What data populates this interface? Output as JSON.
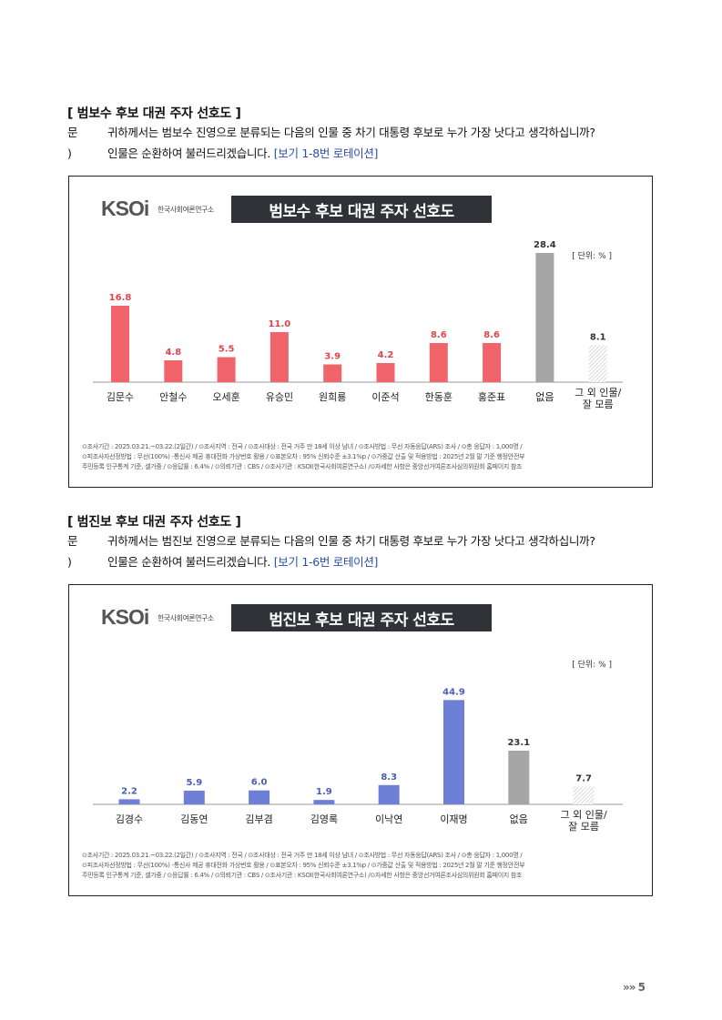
{
  "section1": {
    "title": "[ 범보수 후보 대권 주자 선호도 ]",
    "q_label": "문 )",
    "q_line1": "귀하께서는 범보수 진영으로 분류되는 다음의 인물 중 차기 대통령 후보로 누가 가장 낫다고 생각하십니까?",
    "q_line2": "인물은 순환하여 불러드리겠습니다. ",
    "q_note": "[보기 1-8번 로테이션]",
    "logo_text": "KSOi",
    "logo_org": "한국사회여론연구소",
    "banner": "범보수 후보 대권 주자 선호도",
    "unit": "[ 단위: % ]",
    "footnote": [
      "⊙조사기간 : 2025.03.21.~03.22.(2일간)  / ⊙조사지역 : 전국 / ⊙조사대상 : 전국 거주 만 18세 이상 남녀 / ⊙조사방법 : 무선 자동응답(ARS) 조사 / ⊙총 응답자 : 1,000명 /",
      "⊙피조사자선정방법 : 무선(100%) -통신사 제공 휴대전화 가상번호 활용 / ⊙표본오차 : 95% 신뢰수준 ±3.1%p / ⊙가중값 산출 및 적용방법 : 2025년 2월 말 기준 행정안전부",
      "주민등록 인구통계 기준, 셀가중 / ⊙응답률 : 6.4% / ⊙의뢰기관 : CBS / ⊙조사기관 : KSOI(한국사회여론연구소) /⊙자세한 사항은 중앙선거여론조사심의위원회 홈페이지 참조"
    ]
  },
  "section2": {
    "title": "[ 범진보 후보 대권 주자 선호도 ]",
    "q_label": "문 )",
    "q_line1": "귀하께서는 범진보 진영으로 분류되는 다음의 인물 중 차기 대통령 후보로 누가 가장 낫다고 생각하십니까?",
    "q_line2": "인물은 순환하여 불러드리겠습니다. ",
    "q_note": "[보기 1-6번 로테이션]",
    "logo_text": "KSOi",
    "logo_org": "한국사회여론연구소",
    "banner": "범진보 후보 대권 주자 선호도",
    "unit": "[ 단위: % ]",
    "footnote": [
      "⊙조사기간 : 2025.03.21.~03.22.(2일간)  / ⊙조사지역 : 전국 / ⊙조사대상 : 전국 거주 만 18세 이상 남녀 / ⊙조사방법 : 무선 자동응답(ARS) 조사 / ⊙총 응답자 : 1,000명 /",
      "⊙피조사자선정방법 : 무선(100%) -통신사 제공 휴대전화 가상번호 활용 / ⊙표본오차 : 95% 신뢰수준 ±3.1%p / ⊙가중값 산출 및 적용방법 : 2025년 2월 말 기준 행정안전부",
      "주민등록 인구통계 기준, 셀가중 / ⊙응답률 : 6.4% / ⊙의뢰기관 : CBS / ⊙조사기관 : KSOI(한국사회여론연구소) /⊙자세한 사항은 중앙선거여론조사심의위원회 홈페이지 참조"
    ]
  },
  "chart_data": [
    {
      "type": "bar",
      "title": "범보수 후보 대권 주자 선호도",
      "unit": "[ 단위: % ]",
      "categories": [
        "김문수",
        "안철수",
        "오세훈",
        "유승민",
        "원희룡",
        "이준석",
        "한동훈",
        "홍준표",
        "없음",
        "그 외 인물/\n잘 모름"
      ],
      "values": [
        16.8,
        4.8,
        5.5,
        11.0,
        3.9,
        4.2,
        8.6,
        8.6,
        28.4,
        8.1
      ],
      "value_labels": [
        "16.8",
        "4.8",
        "5.5",
        "11.0",
        "3.9",
        "4.2",
        "8.6",
        "8.6",
        "28.4",
        "8.1"
      ],
      "bar_styles": [
        "candidate",
        "candidate",
        "candidate",
        "candidate",
        "candidate",
        "candidate",
        "candidate",
        "candidate",
        "none",
        "hatched"
      ],
      "colors": {
        "candidate": "#f2646c",
        "candidate_label": "#e0454f",
        "none": "#a6a6a6",
        "hatched": "#cfcfcf",
        "neutral_label": "#333333"
      },
      "ylim": [
        0,
        30
      ],
      "grid": false,
      "legend": "none"
    },
    {
      "type": "bar",
      "title": "범진보 후보 대권 주자 선호도",
      "unit": "[ 단위: % ]",
      "categories": [
        "김경수",
        "김동연",
        "김부겸",
        "김영록",
        "이낙연",
        "이재명",
        "없음",
        "그 외 인물/\n잘 모름"
      ],
      "values": [
        2.2,
        5.9,
        6.0,
        1.9,
        8.3,
        44.9,
        23.1,
        7.7
      ],
      "value_labels": [
        "2.2",
        "5.9",
        "6.0",
        "1.9",
        "8.3",
        "44.9",
        "23.1",
        "7.7"
      ],
      "bar_styles": [
        "candidate",
        "candidate",
        "candidate",
        "candidate",
        "candidate",
        "candidate",
        "none",
        "hatched"
      ],
      "colors": {
        "candidate": "#6e7fd6",
        "candidate_label": "#4a5bb8",
        "none": "#a6a6a6",
        "hatched": "#cfcfcf",
        "neutral_label": "#333333"
      },
      "ylim": [
        0,
        47
      ],
      "grid": false,
      "legend": "none"
    }
  ],
  "page": {
    "number": "»» 5"
  }
}
